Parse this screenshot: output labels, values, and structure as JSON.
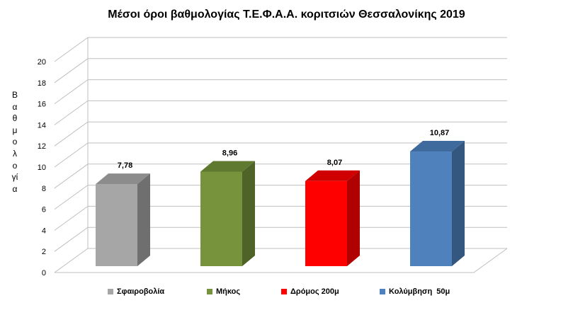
{
  "chart_data": {
    "type": "bar",
    "title": "Μέσοι όροι βαθμολογίας Τ.Ε.Φ.Α.Α. κοριτσιών Θεσσαλονίκης 2019",
    "xlabel": "",
    "ylabel": "Βαθμολογία",
    "ylim": [
      0,
      20
    ],
    "yticks": [
      0,
      2,
      4,
      6,
      8,
      10,
      12,
      14,
      16,
      18,
      20
    ],
    "grid": true,
    "three_d": true,
    "legend_position": "bottom",
    "categories": [
      "Σφαιροβολία",
      "Μήκος",
      "Δρόμος 200μ",
      "Κολύμβηση  50μ"
    ],
    "values": [
      7.78,
      8.96,
      8.07,
      10.87
    ],
    "value_labels": [
      "7,78",
      "8,96",
      "8,07",
      "10,87"
    ],
    "colors": [
      "#A6A6A6",
      "#77933C",
      "#FF0000",
      "#4F81BD"
    ],
    "side_colors": [
      "#6F6F6F",
      "#4F6228",
      "#B00000",
      "#34577F"
    ],
    "top_colors": [
      "#8C8C8C",
      "#5F7A2E",
      "#D00000",
      "#3F6A9E"
    ]
  }
}
